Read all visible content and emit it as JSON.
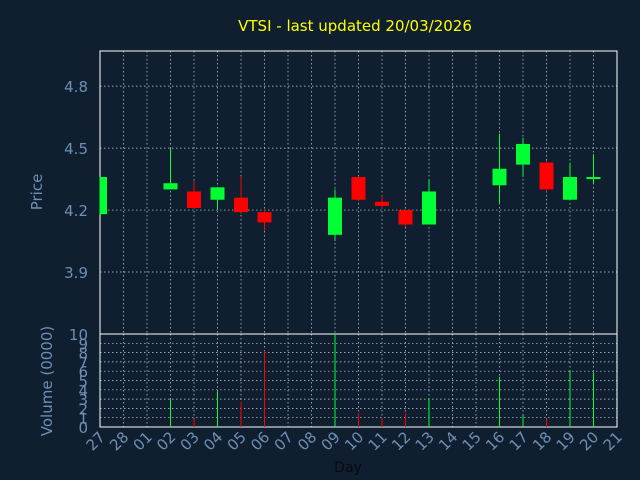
{
  "title": "VTSI - last updated 20/03/2026",
  "colors": {
    "background": "#0f1f30",
    "title": "#ffff00",
    "axis_text": "#6f8fb3",
    "frame": "#ffffff",
    "grid": "#ffffff",
    "up": "#00ff33",
    "down": "#ff0000"
  },
  "chart_data": [
    {
      "type": "candlestick",
      "title": "VTSI - last updated 20/03/2026",
      "ylabel": "Price",
      "ylim": [
        3.6,
        4.97
      ],
      "yticks": [
        "3.9",
        "4.2",
        "4.5",
        "4.8"
      ],
      "grid": true,
      "categories": [
        "27",
        "28",
        "01",
        "02",
        "03",
        "04",
        "05",
        "06",
        "07",
        "08",
        "09",
        "10",
        "11",
        "12",
        "13",
        "14",
        "15",
        "16",
        "17",
        "18",
        "19",
        "20",
        "21"
      ],
      "candles": [
        {
          "x": "27",
          "open": 4.18,
          "high": 4.36,
          "low": 4.18,
          "close": 4.36
        },
        {
          "x": "02",
          "open": 4.3,
          "high": 4.5,
          "low": 4.3,
          "close": 4.33
        },
        {
          "x": "03",
          "open": 4.29,
          "high": 4.34,
          "low": 4.21,
          "close": 4.21
        },
        {
          "x": "04",
          "open": 4.25,
          "high": 4.31,
          "low": 4.2,
          "close": 4.31
        },
        {
          "x": "05",
          "open": 4.26,
          "high": 4.36,
          "low": 4.18,
          "close": 4.19
        },
        {
          "x": "06",
          "open": 4.19,
          "high": 4.2,
          "low": 4.1,
          "close": 4.14
        },
        {
          "x": "09",
          "open": 4.08,
          "high": 4.3,
          "low": 4.05,
          "close": 4.26
        },
        {
          "x": "10",
          "open": 4.36,
          "high": 4.36,
          "low": 4.25,
          "close": 4.25
        },
        {
          "x": "11",
          "open": 4.24,
          "high": 4.27,
          "low": 4.21,
          "close": 4.22
        },
        {
          "x": "12",
          "open": 4.2,
          "high": 4.2,
          "low": 4.12,
          "close": 4.13
        },
        {
          "x": "13",
          "open": 4.13,
          "high": 4.35,
          "low": 4.13,
          "close": 4.29
        },
        {
          "x": "16",
          "open": 4.32,
          "high": 4.57,
          "low": 4.23,
          "close": 4.4
        },
        {
          "x": "17",
          "open": 4.42,
          "high": 4.55,
          "low": 4.36,
          "close": 4.52
        },
        {
          "x": "18",
          "open": 4.43,
          "high": 4.44,
          "low": 4.29,
          "close": 4.3
        },
        {
          "x": "19",
          "open": 4.25,
          "high": 4.43,
          "low": 4.25,
          "close": 4.36
        },
        {
          "x": "20",
          "open": 4.35,
          "high": 4.47,
          "low": 4.33,
          "close": 4.36
        }
      ]
    },
    {
      "type": "bar",
      "ylabel": "Volume (0000)",
      "xlabel": "Day",
      "ylim": [
        0,
        10
      ],
      "yticks": [
        "0",
        "1",
        "2",
        "3",
        "4",
        "5",
        "6",
        "7",
        "8",
        "9",
        "10"
      ],
      "grid": true,
      "categories": [
        "27",
        "28",
        "01",
        "02",
        "03",
        "04",
        "05",
        "06",
        "07",
        "08",
        "09",
        "10",
        "11",
        "12",
        "13",
        "14",
        "15",
        "16",
        "17",
        "18",
        "19",
        "20",
        "21"
      ],
      "volumes": [
        {
          "x": "02",
          "value": 3.0,
          "direction": "up"
        },
        {
          "x": "03",
          "value": 0.9,
          "direction": "down"
        },
        {
          "x": "04",
          "value": 3.8,
          "direction": "up"
        },
        {
          "x": "05",
          "value": 2.7,
          "direction": "down"
        },
        {
          "x": "06",
          "value": 8.2,
          "direction": "down"
        },
        {
          "x": "09",
          "value": 10.0,
          "direction": "up"
        },
        {
          "x": "10",
          "value": 1.5,
          "direction": "down"
        },
        {
          "x": "11",
          "value": 1.0,
          "direction": "down"
        },
        {
          "x": "12",
          "value": 1.5,
          "direction": "down"
        },
        {
          "x": "13",
          "value": 3.1,
          "direction": "up"
        },
        {
          "x": "16",
          "value": 5.4,
          "direction": "up"
        },
        {
          "x": "17",
          "value": 1.3,
          "direction": "up"
        },
        {
          "x": "18",
          "value": 0.9,
          "direction": "down"
        },
        {
          "x": "19",
          "value": 6.1,
          "direction": "up"
        },
        {
          "x": "20",
          "value": 5.9,
          "direction": "up"
        }
      ]
    }
  ]
}
